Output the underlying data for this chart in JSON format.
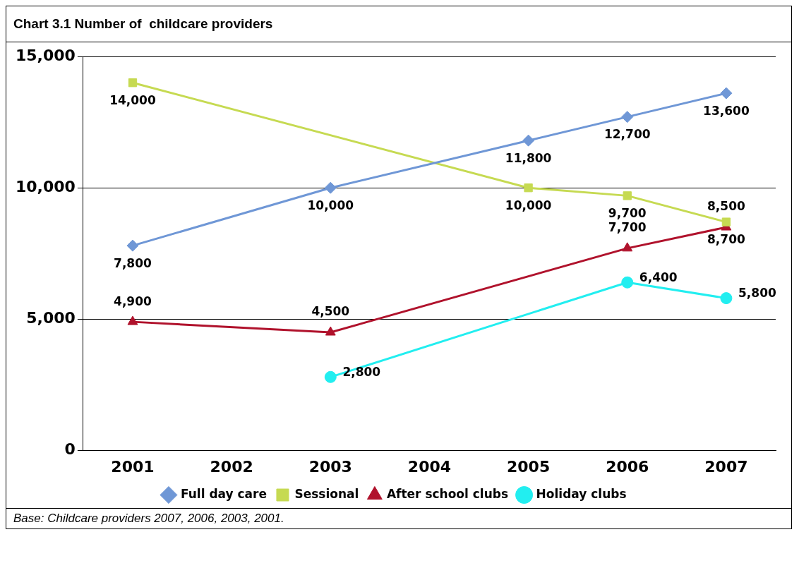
{
  "chart_data": {
    "type": "line",
    "title": "Chart 3.1 Number of  childcare providers",
    "categories": [
      "2001",
      "2002",
      "2003",
      "2004",
      "2005",
      "2006",
      "2007"
    ],
    "series": [
      {
        "name": "Full day care",
        "color": "#6f97d6",
        "marker": "diamond",
        "values": [
          7800,
          null,
          10000,
          null,
          11800,
          12700,
          13600
        ],
        "value_labels": [
          "7,800",
          null,
          "10,000",
          null,
          "11,800",
          "12,700",
          "13,600"
        ]
      },
      {
        "name": "Sessional",
        "color": "#c6da52",
        "marker": "square",
        "values": [
          14000,
          null,
          null,
          null,
          10000,
          9700,
          8700
        ],
        "value_labels": [
          "14,000",
          null,
          null,
          null,
          "10,000",
          "9,700",
          "8,700"
        ]
      },
      {
        "name": "After school clubs",
        "color": "#b0122c",
        "marker": "triangle",
        "values": [
          4900,
          null,
          4500,
          null,
          null,
          7700,
          8500
        ],
        "value_labels": [
          "4,900",
          null,
          "4,500",
          null,
          null,
          "7,700",
          "8,500"
        ]
      },
      {
        "name": "Holiday clubs",
        "color": "#22eef0",
        "marker": "circle",
        "values": [
          null,
          null,
          2800,
          null,
          null,
          6400,
          5800
        ],
        "value_labels": [
          null,
          null,
          "2,800",
          null,
          null,
          "6,400",
          "5,800"
        ]
      }
    ],
    "ylim": [
      0,
      15000
    ],
    "yticks": [
      {
        "value": 0,
        "label": "0"
      },
      {
        "value": 5000,
        "label": "5,000"
      },
      {
        "value": 10000,
        "label": "10,000"
      },
      {
        "value": 15000,
        "label": "15,000"
      }
    ],
    "grid": "y",
    "legend": "bottom",
    "line_style": "solid",
    "annotations": [
      "Base: Childcare providers 2007, 2006, 2003, 2001."
    ]
  }
}
